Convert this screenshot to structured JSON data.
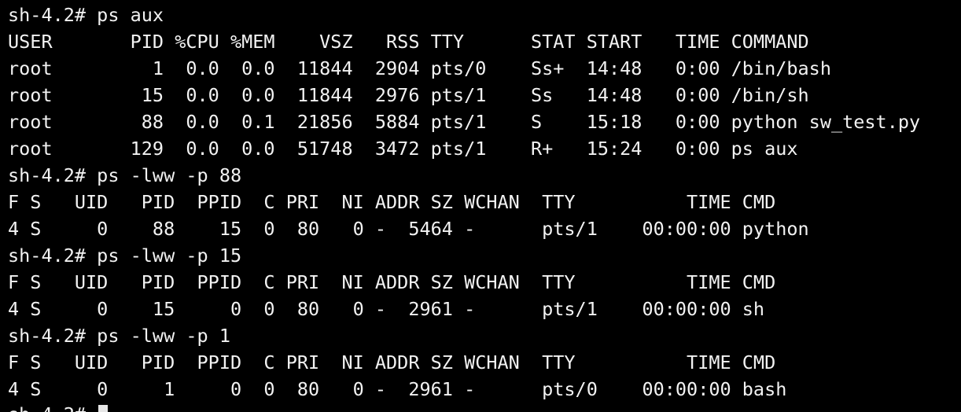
{
  "terminal": {
    "lines": [
      "sh-4.2# ps aux",
      "USER       PID %CPU %MEM    VSZ   RSS TTY      STAT START   TIME COMMAND",
      "root         1  0.0  0.0  11844  2904 pts/0    Ss+  14:48   0:00 /bin/bash",
      "root        15  0.0  0.0  11844  2976 pts/1    Ss   14:48   0:00 /bin/sh",
      "root        88  0.0  0.1  21856  5884 pts/1    S    15:18   0:00 python sw_test.py",
      "root       129  0.0  0.0  51748  3472 pts/1    R+   15:24   0:00 ps aux",
      "sh-4.2# ps -lww -p 88",
      "F S   UID   PID  PPID  C PRI  NI ADDR SZ WCHAN  TTY          TIME CMD",
      "4 S     0    88    15  0  80   0 -  5464 -      pts/1    00:00:00 python",
      "sh-4.2# ps -lww -p 15",
      "F S   UID   PID  PPID  C PRI  NI ADDR SZ WCHAN  TTY          TIME CMD",
      "4 S     0    15     0  0  80   0 -  2961 -      pts/1    00:00:00 sh",
      "sh-4.2# ps -lww -p 1",
      "F S   UID   PID  PPID  C PRI  NI ADDR SZ WCHAN  TTY          TIME CMD",
      "4 S     0     1     0  0  80   0 -  2961 -      pts/0    00:00:00 bash",
      "sh-4.2# "
    ]
  }
}
